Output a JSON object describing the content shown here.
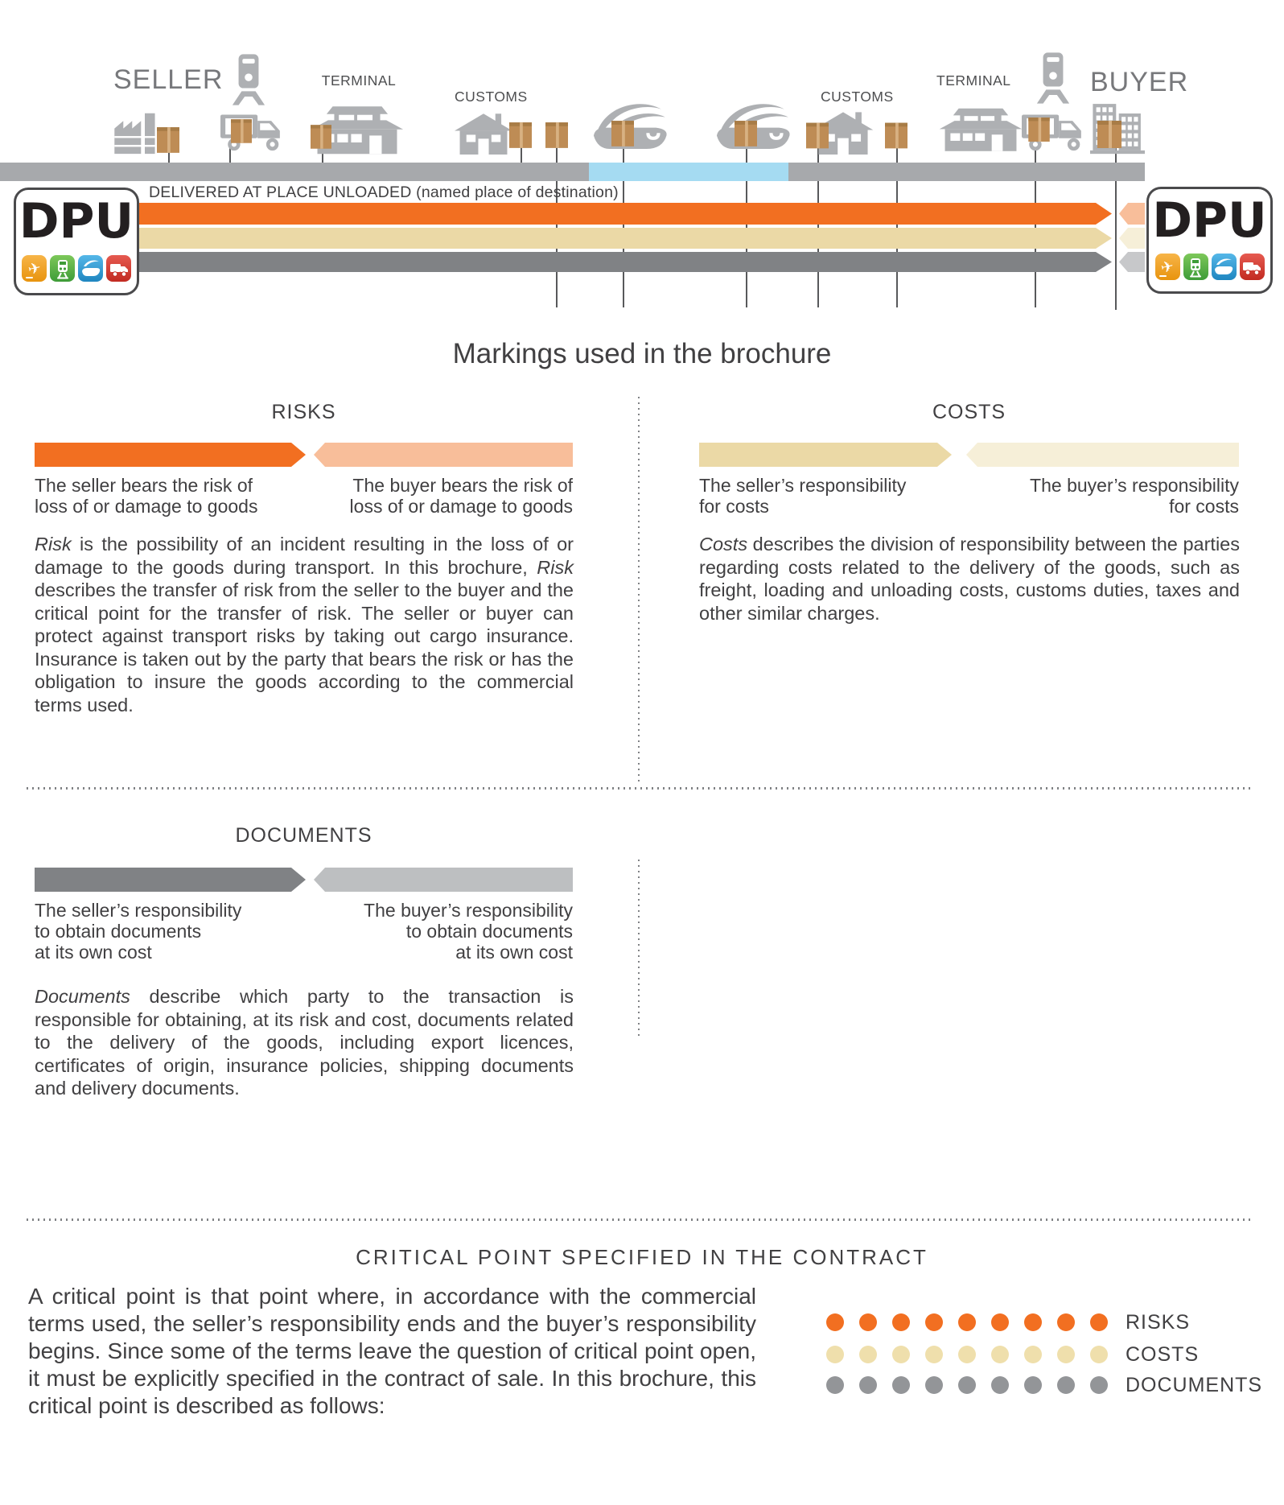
{
  "colors": {
    "risk_seller": "#F26F21",
    "risk_buyer": "#F8BE9A",
    "cost_seller": "#EBD9A6",
    "cost_buyer": "#F6EFD8",
    "doc_seller": "#808285",
    "doc_buyer": "#BDBFC1",
    "timeline_gray": "#A7A9AC",
    "sea_blue": "#A5DBF2",
    "icon_gray": "#AEB0B3",
    "box_brown": "#BE8C55",
    "text_dark": "#414042"
  },
  "top": {
    "seller": "SELLER",
    "buyer": "BUYER",
    "terminal_left": "TERMINAL",
    "customs_left": "CUSTOMS",
    "customs_right": "CUSTOMS",
    "terminal_right": "TERMINAL",
    "banner": "DELIVERED AT PLACE UNLOADED (named place of destination)",
    "badge_code": "DPU",
    "badge_icons": [
      "airplane-icon",
      "train-icon",
      "ship-icon",
      "truck-icon"
    ],
    "chain_icons": [
      "factory-icon",
      "container-crane-icon",
      "delivery-truck-icon",
      "terminal-building-icon",
      "customs-house-icon",
      "cargo-ship-icon",
      "cargo-ship-icon",
      "customs-house-icon",
      "terminal-building-icon",
      "container-crane-icon",
      "delivery-truck-icon",
      "office-building-icon"
    ]
  },
  "markings": {
    "title": "Markings used in the brochure",
    "risks": {
      "heading": "RISKS",
      "seller_caption": "The seller bears the risk of\nloss of or damage to goods",
      "buyer_caption": "The buyer bears the risk of\nloss of or damage to goods",
      "paragraph": [
        {
          "t": "Risk",
          "i": 1
        },
        {
          "t": " is the possibility of an incident resulting in the loss of or damage to the goods during transport. In this brochure, ",
          "i": 0
        },
        {
          "t": "Risk",
          "i": 1
        },
        {
          "t": " describes the transfer of risk from the seller to the buyer and the critical point for the transfer of risk. The seller or buyer can protect against transport risks by taking out cargo insurance. Insurance is taken out by the party that bears the risk or has the obligation to insure the goods according to the commercial terms used.",
          "i": 0
        }
      ]
    },
    "costs": {
      "heading": "COSTS",
      "seller_caption": "The seller’s responsibility\nfor costs",
      "buyer_caption": "The buyer’s responsibility\nfor costs",
      "paragraph": [
        {
          "t": "Costs",
          "i": 1
        },
        {
          "t": " describes the division of responsibility between the parties regarding costs related to the delivery of the goods, such as freight, loading and unloading costs, customs duties, taxes and other similar charges.",
          "i": 0
        }
      ]
    },
    "documents": {
      "heading": "DOCUMENTS",
      "seller_caption": "The seller’s responsibility\nto obtain documents\nat its own cost",
      "buyer_caption": "The buyer’s responsibility\nto obtain documents\nat its own cost",
      "paragraph": [
        {
          "t": "Documents",
          "i": 1
        },
        {
          "t": " describe which party to the transaction is responsible for obtaining, at its risk and cost, documents related to the delivery of the goods, including export licences, certificates of origin, insurance policies, shipping documents and delivery documents.",
          "i": 0
        }
      ]
    }
  },
  "critical_point": {
    "title": "CRITICAL POINT SPECIFIED IN THE CONTRACT",
    "paragraph": "A critical point is that point where, in accordance with the commercial terms used, the seller’s responsibility ends and the buyer’s responsibility begins. Since some of the terms leave the question of critical point open, it must be explicitly specified in the contract of sale. In this brochure, this critical point is described as follows:",
    "legend": [
      {
        "label": "RISKS",
        "color": "#F26F21",
        "dots": 9
      },
      {
        "label": "COSTS",
        "color": "#EFDFAC",
        "dots": 9
      },
      {
        "label": "DOCUMENTS",
        "color": "#939598",
        "dots": 9
      }
    ]
  }
}
